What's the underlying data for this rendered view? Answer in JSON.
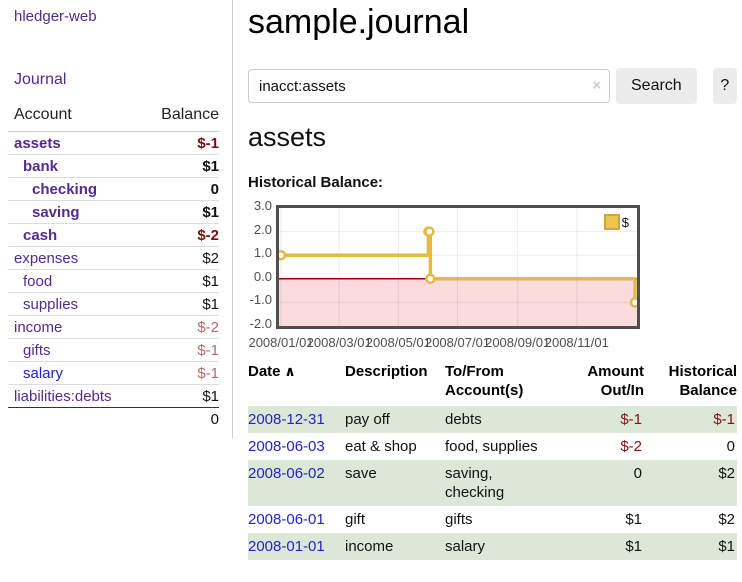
{
  "brand": "hledger-web",
  "nav": {
    "journal_label": "Journal"
  },
  "colors": {
    "link_purple": "#552a90",
    "link_blue": "#2222cc",
    "negative_strong": "#7b0c0c",
    "negative_weak": "#b76a6a",
    "row_green": "#dbe8d8",
    "chart_line": "#e4ba45",
    "chart_negative_fill": "#fbdbdb",
    "chart_zero_line": "#a40000"
  },
  "sidebar": {
    "header": {
      "account": "Account",
      "balance": "Balance"
    },
    "rows": [
      {
        "name": "assets",
        "depth": 1,
        "bold": true,
        "blue": false,
        "balance": "$-1",
        "neg": "strong"
      },
      {
        "name": "bank",
        "depth": 2,
        "bold": true,
        "blue": false,
        "balance": "$1",
        "neg": "none"
      },
      {
        "name": "checking",
        "depth": 3,
        "bold": true,
        "blue": false,
        "balance": "0",
        "neg": "none"
      },
      {
        "name": "saving",
        "depth": 3,
        "bold": true,
        "blue": false,
        "balance": "$1",
        "neg": "none"
      },
      {
        "name": "cash",
        "depth": 2,
        "bold": true,
        "blue": false,
        "balance": "$-2",
        "neg": "strong"
      },
      {
        "name": "expenses",
        "depth": 1,
        "bold": false,
        "blue": false,
        "balance": "$2",
        "neg": "none"
      },
      {
        "name": "food",
        "depth": 2,
        "bold": false,
        "blue": false,
        "balance": "$1",
        "neg": "none"
      },
      {
        "name": "supplies",
        "depth": 2,
        "bold": false,
        "blue": false,
        "balance": "$1",
        "neg": "none"
      },
      {
        "name": "income",
        "depth": 1,
        "bold": false,
        "blue": false,
        "balance": "$-2",
        "neg": "weak"
      },
      {
        "name": "gifts",
        "depth": 2,
        "bold": false,
        "blue": false,
        "balance": "$-1",
        "neg": "weak"
      },
      {
        "name": "salary",
        "depth": 2,
        "bold": false,
        "blue": true,
        "balance": "$-1",
        "neg": "weak"
      },
      {
        "name": "liabilities:debts",
        "depth": 1,
        "bold": false,
        "blue": false,
        "balance": "$1",
        "neg": "none"
      }
    ],
    "total": "0"
  },
  "main": {
    "title": "sample.journal",
    "search": {
      "query": "inacct:assets",
      "clear_icon": "×",
      "search_button": "Search",
      "help_button": "?"
    },
    "heading": "assets",
    "chart_title": "Historical Balance:"
  },
  "chart_data": {
    "type": "line",
    "step": true,
    "title": "Historical Balance:",
    "legend": [
      "$"
    ],
    "legend_position": "top-right",
    "grid": true,
    "ylim": [
      -2.0,
      3.0
    ],
    "yticks": [
      "3.0",
      "2.0",
      "1.0",
      "0.0",
      "-1.0",
      "-2.0"
    ],
    "xticks": [
      "2008/01/01",
      "2008/03/01",
      "2008/05/01",
      "2008/07/01",
      "2008/09/01",
      "2008/11/01"
    ],
    "x_range": [
      "2008-01-01",
      "2008-12-31"
    ],
    "series": [
      {
        "name": "$",
        "points": [
          {
            "x": "2008-01-01",
            "y": 1
          },
          {
            "x": "2008-06-01",
            "y": 2
          },
          {
            "x": "2008-06-02",
            "y": 2
          },
          {
            "x": "2008-06-03",
            "y": 0
          },
          {
            "x": "2008-12-31",
            "y": -1
          }
        ]
      }
    ]
  },
  "register": {
    "sort_icon": "∧",
    "columns": [
      {
        "lines": [
          "Date"
        ],
        "align": "left",
        "sorted": true
      },
      {
        "lines": [
          "Description"
        ],
        "align": "left",
        "sorted": false
      },
      {
        "lines": [
          "To/From",
          "Account(s)"
        ],
        "align": "left",
        "sorted": false
      },
      {
        "lines": [
          "Amount",
          "Out/In"
        ],
        "align": "right",
        "sorted": false
      },
      {
        "lines": [
          "Historical",
          "Balance"
        ],
        "align": "right",
        "sorted": false
      }
    ],
    "rows": [
      {
        "date": "2008-12-31",
        "description": "pay off",
        "accounts": "debts",
        "amount": "$-1",
        "amount_neg": true,
        "balance": "$-1",
        "balance_neg": true,
        "alt": true
      },
      {
        "date": "2008-06-03",
        "description": "eat & shop",
        "accounts": "food, supplies",
        "amount": "$-2",
        "amount_neg": true,
        "balance": "0",
        "balance_neg": false,
        "alt": false
      },
      {
        "date": "2008-06-02",
        "description": "save",
        "accounts": "saving, checking",
        "amount": "0",
        "amount_neg": false,
        "balance": "$2",
        "balance_neg": false,
        "alt": true
      },
      {
        "date": "2008-06-01",
        "description": "gift",
        "accounts": "gifts",
        "amount": "$1",
        "amount_neg": false,
        "balance": "$2",
        "balance_neg": false,
        "alt": false
      },
      {
        "date": "2008-01-01",
        "description": "income",
        "accounts": "salary",
        "amount": "$1",
        "amount_neg": false,
        "balance": "$1",
        "balance_neg": false,
        "alt": true
      }
    ]
  }
}
